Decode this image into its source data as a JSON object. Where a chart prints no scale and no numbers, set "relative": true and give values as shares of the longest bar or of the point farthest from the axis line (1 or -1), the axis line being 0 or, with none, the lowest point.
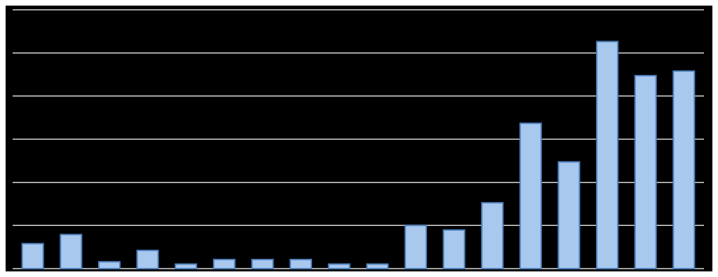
{
  "chart_data": {
    "type": "bar",
    "relative": true,
    "grid": true,
    "color": "#a9c8ee",
    "categories": [
      null,
      null,
      null,
      null,
      null,
      null,
      null,
      null,
      null,
      null,
      null,
      null,
      null,
      null,
      null,
      null,
      null,
      null
    ],
    "values": [
      0.11,
      0.15,
      0.03,
      0.08,
      0.02,
      0.04,
      0.04,
      0.04,
      0.02,
      0.02,
      0.19,
      0.17,
      0.29,
      0.64,
      0.47,
      1,
      0.85,
      0.87
    ]
  }
}
